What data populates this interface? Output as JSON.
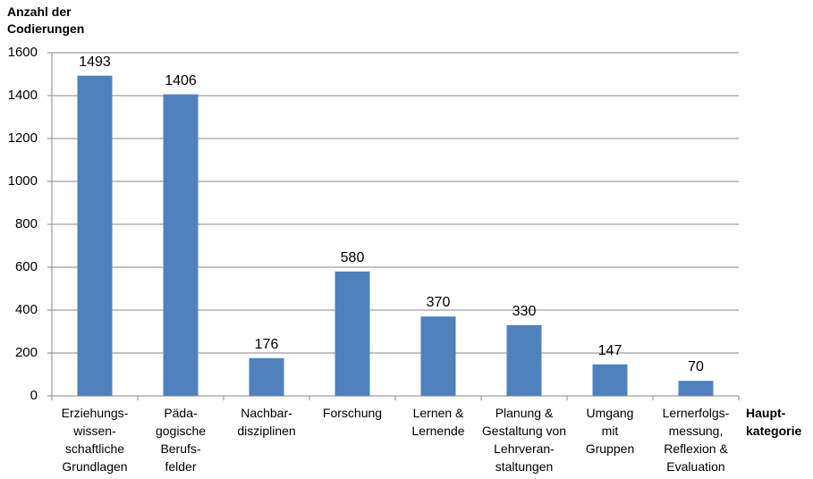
{
  "chart_data": {
    "type": "bar",
    "ylabel": "Anzahl der\nCodierungen",
    "xlabel": "Haupt-\nkategorie",
    "ylim": [
      0,
      1600
    ],
    "yticks": [
      0,
      200,
      400,
      600,
      800,
      1000,
      1200,
      1400,
      1600
    ],
    "grid": true,
    "legend": "none",
    "bar_color": "#4F81BD",
    "categories": [
      "Erziehungs-\nwissen-\nschaftliche\nGrundlagen",
      "Päda-\ngogische\nBerufs-\nfelder",
      "Nachbar-\ndisziplinen",
      "Forschung",
      "Lernen &\nLernende",
      "Planung &\nGestaltung von\nLehrveran-\nstaltungen",
      "Umgang\nmit\nGruppen",
      "Lernerfolgs-\nmessung,\nReflexion &\nEvaluation"
    ],
    "values": [
      1493,
      1406,
      176,
      580,
      370,
      330,
      147,
      70
    ]
  }
}
